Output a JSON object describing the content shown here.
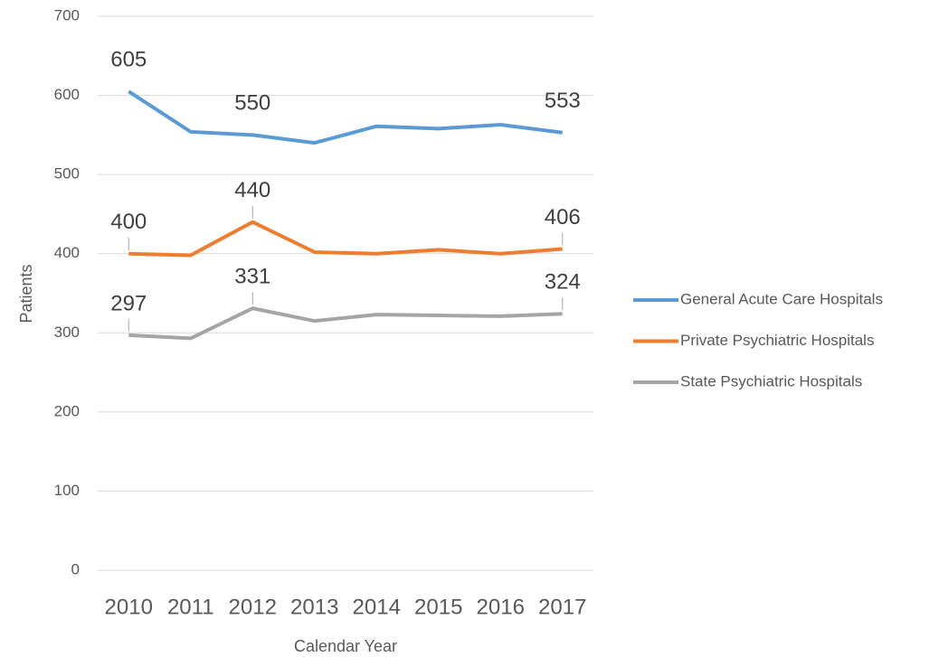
{
  "chart_data": {
    "type": "line",
    "x_label": "Calendar Year",
    "y_label": "Patients",
    "categories": [
      "2010",
      "2011",
      "2012",
      "2013",
      "2014",
      "2015",
      "2016",
      "2017"
    ],
    "series": [
      {
        "name": "General Acute Care Hospitals",
        "color": "#5b9bd5",
        "values": [
          605,
          554,
          550,
          540,
          561,
          558,
          563,
          553
        ],
        "labeled_indices": [
          0,
          2,
          7
        ]
      },
      {
        "name": "Private Psychiatric Hospitals",
        "color": "#ed7d31",
        "values": [
          400,
          398,
          440,
          402,
          400,
          405,
          400,
          406
        ],
        "labeled_indices": [
          0,
          2,
          7
        ]
      },
      {
        "name": "State Psychiatric Hospitals",
        "color": "#a5a5a5",
        "values": [
          297,
          293,
          331,
          315,
          323,
          322,
          321,
          324
        ],
        "labeled_indices": [
          0,
          2,
          7
        ]
      }
    ],
    "ylim": [
      0,
      700
    ],
    "yticks": [
      0,
      100,
      200,
      300,
      400,
      500,
      600,
      700
    ],
    "grid": true,
    "legend": "right"
  }
}
